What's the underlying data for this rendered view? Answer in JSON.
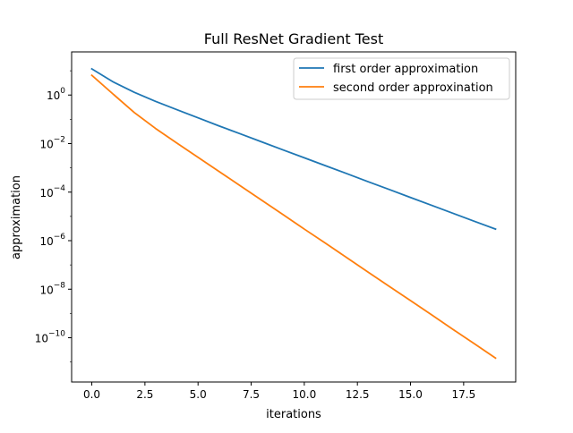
{
  "chart_data": {
    "type": "line",
    "title": "Full ResNet Gradient Test",
    "xlabel": "iterations",
    "ylabel": "approximation",
    "yscale": "log",
    "xlim": [
      -0.95,
      19.95
    ],
    "ylim": [
      1.5e-12,
      60
    ],
    "x_ticks": [
      {
        "value": 0,
        "label": "0.0"
      },
      {
        "value": 2.5,
        "label": "2.5"
      },
      {
        "value": 5,
        "label": "5.0"
      },
      {
        "value": 7.5,
        "label": "7.5"
      },
      {
        "value": 10,
        "label": "10.0"
      },
      {
        "value": 12.5,
        "label": "12.5"
      },
      {
        "value": 15,
        "label": "15.0"
      },
      {
        "value": 17.5,
        "label": "17.5"
      }
    ],
    "y_ticks": [
      {
        "value": 1,
        "base": "10",
        "exp": "0"
      },
      {
        "value": 0.01,
        "base": "10",
        "exp": "−2"
      },
      {
        "value": 0.0001,
        "base": "10",
        "exp": "−4"
      },
      {
        "value": 1e-06,
        "base": "10",
        "exp": "−6"
      },
      {
        "value": 1e-08,
        "base": "10",
        "exp": "−8"
      },
      {
        "value": 1e-10,
        "base": "10",
        "exp": "−10"
      }
    ],
    "grid": false,
    "legend_position": "top-right",
    "series": [
      {
        "name": "first order approximation",
        "color": "#1f77b4",
        "x": [
          0,
          1,
          2,
          3,
          4,
          5,
          6,
          7,
          8,
          9,
          10,
          11,
          12,
          13,
          14,
          15,
          16,
          17,
          18,
          19
        ],
        "y": [
          12,
          3.5,
          1.3,
          0.55,
          0.25,
          0.115,
          0.053,
          0.025,
          0.0117,
          0.0055,
          0.0026,
          0.00122,
          0.00058,
          0.00027,
          0.000128,
          6e-05,
          2.85e-05,
          1.34e-05,
          6.3e-06,
          3e-06
        ]
      },
      {
        "name": "second order approxination",
        "color": "#ff7f0e",
        "x": [
          0,
          1,
          2,
          3,
          4,
          5,
          6,
          7,
          8,
          9,
          10,
          11,
          12,
          13,
          14,
          15,
          16,
          17,
          18,
          19
        ],
        "y": [
          6.5,
          1.1,
          0.19,
          0.042,
          0.0105,
          0.0027,
          0.0007,
          0.00018,
          4.6e-05,
          1.18e-05,
          3e-06,
          7.8e-07,
          2e-07,
          5.1e-08,
          1.31e-08,
          3.4e-09,
          8.7e-10,
          2.2e-10,
          5.7e-11,
          1.45e-11
        ]
      }
    ]
  }
}
